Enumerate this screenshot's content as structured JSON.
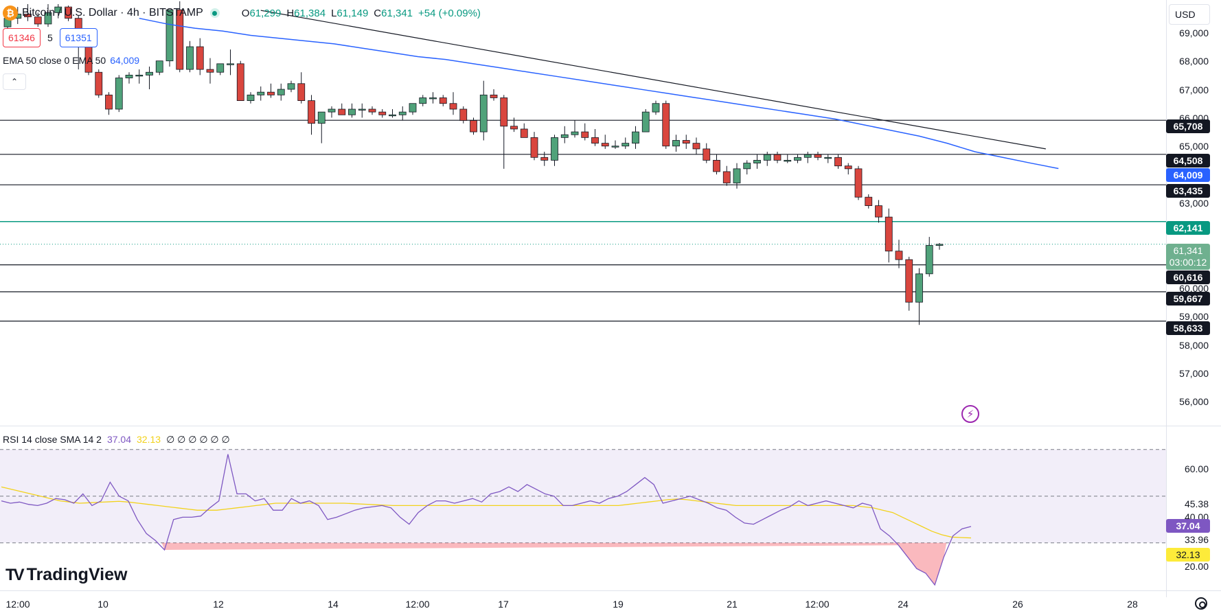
{
  "header": {
    "symbol_icon": "bitcoin-icon",
    "symbol_glyph": "₿",
    "title": "Bitcoin / U.S. Dollar · 4h · BITSTAMP",
    "ohlc": {
      "o_key": "O",
      "o": "61,299",
      "h_key": "H",
      "h": "61,384",
      "l_key": "L",
      "l": "61,149",
      "c_key": "C",
      "c": "61,341",
      "change": "+54 (+0.09%)"
    }
  },
  "bid_ask": {
    "sell": "61346",
    "spread": "5",
    "buy": "61351"
  },
  "ema_legend": {
    "label": "EMA 50 close 0 EMA 50",
    "value": "64,009"
  },
  "collapse_glyph": "⌃",
  "rsi_legend": {
    "label": "RSI 14 close SMA 14 2",
    "rsi": "37.04",
    "sma": "32.13",
    "extra": "∅ ∅ ∅ ∅ ∅ ∅"
  },
  "branding": {
    "logo_mark": "TV",
    "name": "TradingView"
  },
  "lightning_glyph": "⚡",
  "currency_selector": "USD",
  "price_axis": [
    "69,000",
    "68,000",
    "67,000",
    "66,000",
    "65,000",
    "63,000",
    "60,000",
    "59,000",
    "58,000",
    "57,000",
    "56,000"
  ],
  "price_tags": {
    "r1": "65,708",
    "r2": "64,508",
    "ema": "64,009",
    "r3": "63,435",
    "pivot": "62,141",
    "current_price": "61,341",
    "countdown": "03:00:12",
    "s1": "60,616",
    "s2": "59,667",
    "s3": "58,633"
  },
  "rsi_axis": [
    "60.00",
    "45.38",
    "40.00",
    "33.96",
    "20.00"
  ],
  "rsi_tags": {
    "rsi": "37.04",
    "sma": "32.13"
  },
  "time_axis": [
    "12:00",
    "10",
    "12",
    "14",
    "12:00",
    "17",
    "19",
    "21",
    "12:00",
    "24",
    "26",
    "28"
  ],
  "colors": {
    "up": "#089981",
    "down": "#f23645",
    "up_fill": "#50a27a",
    "down_fill": "#d9463e",
    "ema": "#2962ff",
    "pivot": "#089981",
    "rsi": "#7e57c2",
    "rsi_sma": "#f2d21a"
  },
  "chart_data": {
    "type": "candlestick",
    "price_range": [
      55000,
      69800
    ],
    "candles": [
      [
        69000,
        69500,
        68900,
        69300
      ],
      [
        69300,
        69700,
        69100,
        69450
      ],
      [
        69450,
        69800,
        69200,
        69350
      ],
      [
        69350,
        69500,
        69000,
        69100
      ],
      [
        69100,
        69800,
        69000,
        69500
      ],
      [
        69500,
        69800,
        69300,
        69700
      ],
      [
        69700,
        69750,
        69200,
        69300
      ],
      [
        69300,
        69400,
        67500,
        68300
      ],
      [
        68300,
        68400,
        67300,
        67400
      ],
      [
        67400,
        67500,
        66500,
        66600
      ],
      [
        66600,
        66700,
        65900,
        66100
      ],
      [
        66100,
        67300,
        66000,
        67200
      ],
      [
        67200,
        67400,
        67000,
        67300
      ],
      [
        67300,
        67500,
        67000,
        67300
      ],
      [
        67300,
        67600,
        66800,
        67400
      ],
      [
        67400,
        67800,
        67300,
        67800
      ],
      [
        67800,
        69600,
        67600,
        69600
      ],
      [
        69600,
        69900,
        67400,
        67500
      ],
      [
        67500,
        68500,
        67400,
        68300
      ],
      [
        68300,
        68600,
        67300,
        67500
      ],
      [
        67500,
        67900,
        67000,
        67400
      ],
      [
        67400,
        67700,
        67300,
        67700
      ],
      [
        67700,
        68200,
        67300,
        67700
      ],
      [
        67700,
        67800,
        66400,
        66400
      ],
      [
        66400,
        66700,
        66300,
        66600
      ],
      [
        66600,
        66900,
        66400,
        66700
      ],
      [
        66700,
        67000,
        66500,
        66600
      ],
      [
        66600,
        67000,
        66400,
        66800
      ],
      [
        66800,
        67100,
        66700,
        67000
      ],
      [
        67000,
        67400,
        66300,
        66400
      ],
      [
        66400,
        66600,
        65200,
        65600
      ],
      [
        65600,
        66000,
        64900,
        66000
      ],
      [
        66000,
        66200,
        65800,
        66100
      ],
      [
        66100,
        66300,
        65900,
        65900
      ],
      [
        65900,
        66300,
        65800,
        66100
      ],
      [
        66100,
        66300,
        65800,
        66100
      ],
      [
        66100,
        66200,
        65900,
        66000
      ],
      [
        66000,
        66100,
        65800,
        65900
      ],
      [
        65900,
        66100,
        65800,
        65900
      ],
      [
        65900,
        66200,
        65700,
        66000
      ],
      [
        66000,
        66300,
        65900,
        66300
      ],
      [
        66300,
        66600,
        66200,
        66500
      ],
      [
        66500,
        66700,
        66300,
        66500
      ],
      [
        66500,
        66600,
        66200,
        66300
      ],
      [
        66300,
        66700,
        65900,
        66100
      ],
      [
        66100,
        66200,
        65600,
        65700
      ],
      [
        65700,
        65800,
        65200,
        65300
      ],
      [
        65300,
        67100,
        65000,
        66600
      ],
      [
        66600,
        66800,
        66400,
        66500
      ],
      [
        66500,
        66600,
        64000,
        65500
      ],
      [
        65500,
        65800,
        65300,
        65400
      ],
      [
        65400,
        65600,
        65100,
        65100
      ],
      [
        65100,
        65300,
        64300,
        64400
      ],
      [
        64400,
        64600,
        64100,
        64300
      ],
      [
        64300,
        65200,
        64100,
        65100
      ],
      [
        65100,
        65500,
        64900,
        65200
      ],
      [
        65200,
        65700,
        65100,
        65300
      ],
      [
        65300,
        65600,
        65000,
        65100
      ],
      [
        65100,
        65400,
        64800,
        64900
      ],
      [
        64900,
        65200,
        64700,
        64800
      ],
      [
        64800,
        65000,
        64700,
        64800
      ],
      [
        64800,
        65100,
        64700,
        64900
      ],
      [
        64900,
        65500,
        64700,
        65300
      ],
      [
        65300,
        66100,
        65300,
        66000
      ],
      [
        66000,
        66400,
        65900,
        66300
      ],
      [
        66300,
        66400,
        64700,
        64800
      ],
      [
        64800,
        65200,
        64600,
        65000
      ],
      [
        65000,
        65200,
        64700,
        64900
      ],
      [
        64900,
        65100,
        64500,
        64700
      ],
      [
        64700,
        64900,
        64200,
        64300
      ],
      [
        64300,
        64500,
        63800,
        63900
      ],
      [
        63900,
        64100,
        63400,
        63500
      ],
      [
        63500,
        64200,
        63300,
        64000
      ],
      [
        64000,
        64300,
        63800,
        64200
      ],
      [
        64200,
        64500,
        64000,
        64300
      ],
      [
        64300,
        64600,
        64100,
        64500
      ],
      [
        64500,
        64600,
        64200,
        64300
      ],
      [
        64300,
        64500,
        64200,
        64300
      ],
      [
        64300,
        64500,
        64200,
        64400
      ],
      [
        64400,
        64600,
        64200,
        64500
      ],
      [
        64500,
        64600,
        64300,
        64400
      ],
      [
        64400,
        64500,
        64200,
        64400
      ],
      [
        64400,
        64500,
        64000,
        64100
      ],
      [
        64100,
        64200,
        63800,
        64000
      ],
      [
        64000,
        64100,
        62900,
        63000
      ],
      [
        63000,
        63100,
        62600,
        62700
      ],
      [
        62700,
        62900,
        62100,
        62300
      ],
      [
        62300,
        62600,
        60700,
        61100
      ],
      [
        61100,
        61500,
        60500,
        60800
      ],
      [
        60800,
        60900,
        59000,
        59300
      ],
      [
        59300,
        60500,
        58500,
        60300
      ],
      [
        60300,
        61600,
        60200,
        61300
      ],
      [
        61299,
        61384,
        61149,
        61341
      ]
    ],
    "ema50": [
      [
        69300,
        69100
      ],
      [
        68950,
        68850
      ],
      [
        68700,
        68600
      ],
      [
        68500,
        68400
      ],
      [
        68250,
        68100
      ],
      [
        67950,
        67850
      ],
      [
        67700,
        67550
      ],
      [
        67400,
        67250
      ],
      [
        67100,
        66950
      ],
      [
        66800,
        66650
      ],
      [
        66500,
        66350
      ],
      [
        66200,
        66050
      ],
      [
        65900,
        65750
      ],
      [
        65550,
        65350
      ],
      [
        65150,
        64900
      ],
      [
        64600,
        64400
      ],
      [
        64200,
        64009
      ]
    ],
    "trendline": [
      [
        69700,
        64700
      ]
    ],
    "levels": [
      65708,
      64508,
      63435,
      62141,
      60616,
      59667,
      58633
    ],
    "current_price": 61341,
    "rsi_range": [
      12,
      72
    ],
    "rsi_bands": [
      70,
      50,
      30
    ],
    "rsi": [
      48,
      47,
      47.5,
      46.5,
      46,
      47,
      49,
      48.5,
      47,
      51,
      46,
      48,
      56,
      50,
      48,
      40,
      34,
      31,
      27,
      40,
      41,
      41,
      41.5,
      45,
      48,
      68,
      51,
      51,
      48,
      49,
      44,
      44,
      49,
      47,
      48,
      46,
      40,
      41,
      42.5,
      44,
      45,
      45.5,
      46,
      45,
      41,
      38,
      43,
      46,
      48,
      48,
      47,
      48,
      49,
      47.5,
      51,
      52,
      54,
      52,
      55,
      53,
      51,
      50,
      46,
      46,
      47,
      48,
      47,
      49,
      50,
      52,
      55,
      58,
      55,
      47,
      48,
      49,
      50,
      48.5,
      47,
      45,
      44,
      41,
      38.5,
      38,
      40,
      42,
      44,
      45.5,
      48,
      46,
      47,
      48,
      47,
      46,
      45,
      47,
      46,
      36,
      33,
      29,
      24,
      19,
      17,
      12,
      24,
      33,
      36,
      37.04
    ],
    "rsi_sma": [
      54,
      53,
      52,
      51,
      50,
      49,
      48,
      47.5,
      47,
      47.2,
      47.4,
      47.6,
      47.8,
      47.5,
      47,
      46.5,
      46,
      45.5,
      45,
      44.5,
      44,
      44,
      44,
      44.5,
      45,
      45.5,
      46,
      46.5,
      47,
      47,
      47,
      47,
      47,
      47,
      47,
      47,
      46.8,
      46.6,
      46.4,
      46.2,
      46,
      46,
      46,
      46,
      46,
      46,
      46,
      46,
      46,
      46,
      46,
      46,
      46,
      46,
      46,
      46,
      46,
      46,
      46,
      46,
      46,
      46,
      46,
      46,
      46.5,
      47,
      47.5,
      48,
      48.5,
      48.8,
      48.5,
      48,
      47.5,
      47,
      46.5,
      46,
      46,
      46,
      46,
      46,
      46,
      46,
      46,
      46,
      46,
      46,
      46,
      46,
      45.5,
      45,
      44,
      43,
      41,
      39,
      37,
      35,
      33.5,
      32.5,
      32.3,
      32.13
    ]
  }
}
